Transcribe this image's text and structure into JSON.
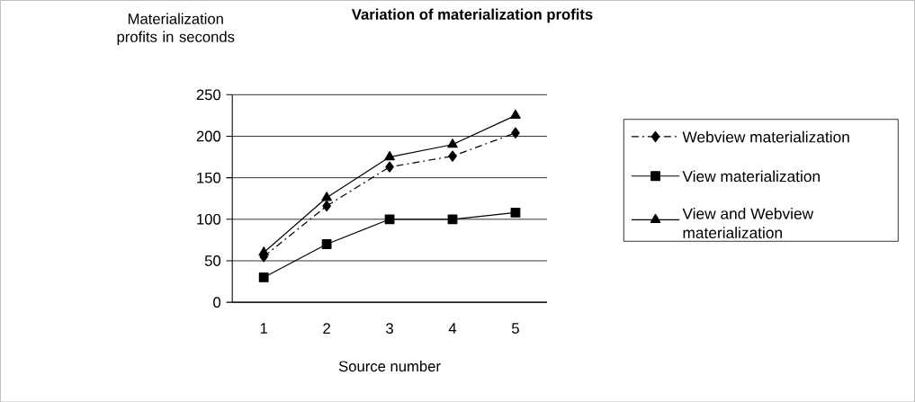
{
  "chart_data": {
    "type": "line",
    "title": "Variation of materialization profits",
    "xlabel": "Source number",
    "ylabel": "Materialization profits in seconds",
    "categories": [
      "1",
      "2",
      "3",
      "4",
      "5"
    ],
    "series": [
      {
        "name": "Webview materialization",
        "color": "#000000",
        "marker": "diamond",
        "line_style": "dashed",
        "values": [
          55,
          116,
          163,
          176,
          204
        ]
      },
      {
        "name": "View materialization",
        "color": "#000000",
        "marker": "square",
        "line_style": "solid",
        "values": [
          30,
          70,
          100,
          100,
          108
        ]
      },
      {
        "name": "View and Webview materialization",
        "color": "#000000",
        "marker": "triangle",
        "line_style": "solid",
        "values": [
          60,
          126,
          175,
          190,
          225
        ]
      }
    ],
    "ylim": [
      0,
      250
    ],
    "yticks": [
      0,
      50,
      100,
      150,
      200,
      250
    ],
    "grid": "y",
    "legend": "right"
  }
}
